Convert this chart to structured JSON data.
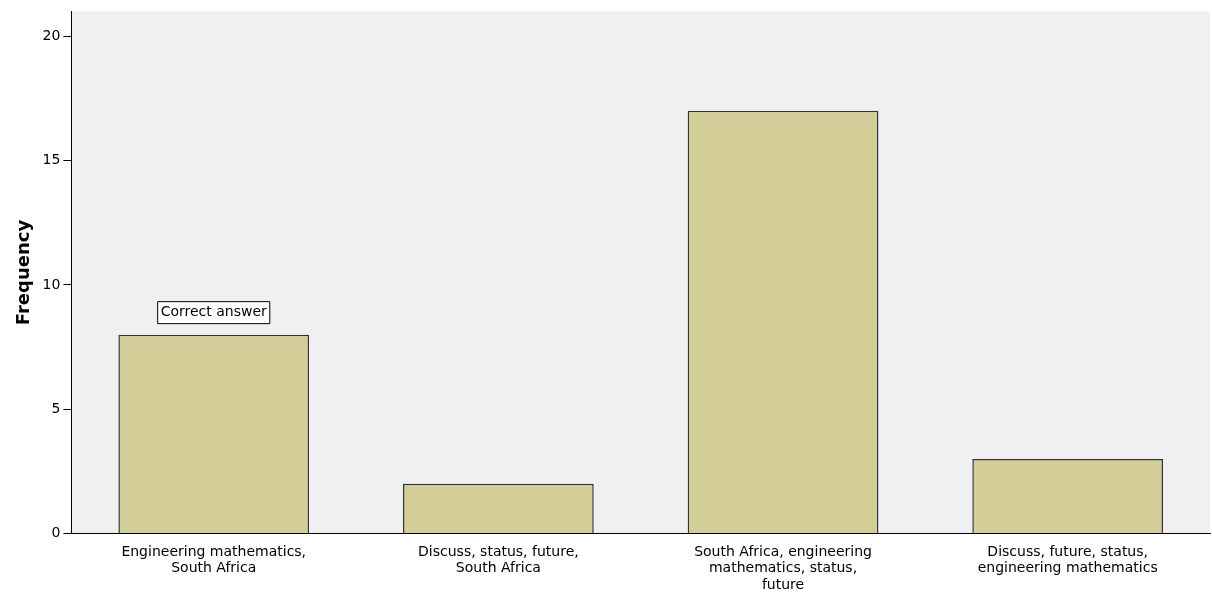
{
  "chart_data": {
    "type": "bar",
    "ylabel": "Frequency",
    "categories": [
      "Engineering mathematics, South Africa",
      "Discuss, status, future, South Africa",
      "South Africa, engineering mathematics, status, future",
      "Discuss, future, status, engineering mathematics"
    ],
    "values": [
      8,
      2,
      17,
      3
    ],
    "color": "#d3ce97",
    "ylim": [
      0,
      21
    ],
    "yticks": [
      0,
      5,
      10,
      15,
      20
    ],
    "grid": false,
    "legend": false,
    "annotations": [
      "Correct answer"
    ]
  }
}
